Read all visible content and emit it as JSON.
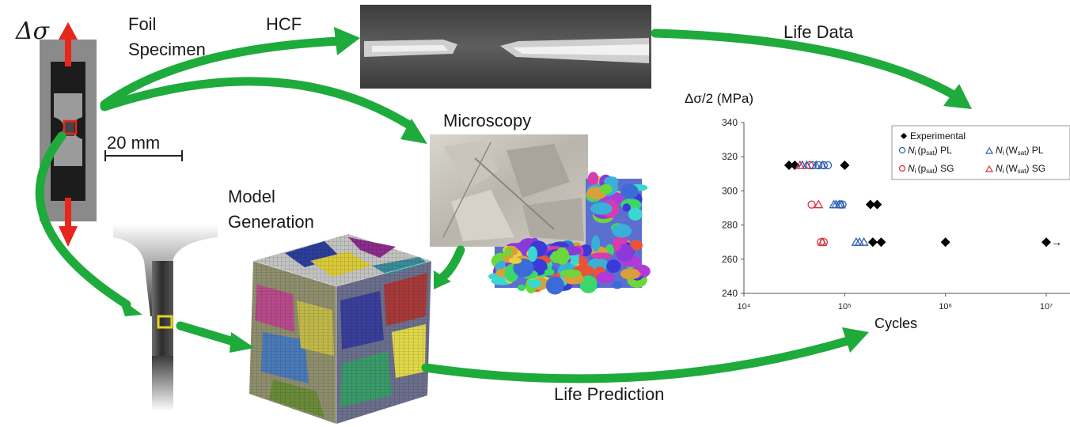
{
  "labels": {
    "delta_sigma": "Δσ",
    "foil_line1": "Foil",
    "foil_line2": "Specimen",
    "hcf": "HCF",
    "life_data": "Life Data",
    "microscopy": "Microscopy",
    "scale": "20 mm",
    "model_line1": "Model",
    "model_line2": "Generation",
    "life_prediction": "Life Prediction"
  },
  "colors": {
    "arrow": "#1faa3c",
    "load_arrow": "#e8261c",
    "exp": "#000000",
    "pl": "#2f5fb3",
    "sg": "#e0303a"
  },
  "chart_data": {
    "type": "scatter",
    "ylabel": "Δσ/2 (MPa)",
    "xlabel": "Cycles",
    "xscale": "log",
    "xlim": [
      10000,
      10000000
    ],
    "ylim": [
      240,
      340
    ],
    "xticks": [
      "10⁴",
      "10⁵",
      "10⁶",
      "10⁷"
    ],
    "yticks": [
      "240",
      "260",
      "280",
      "300",
      "320",
      "340"
    ],
    "legend_position": "top-right",
    "series": [
      {
        "name": "Experimental",
        "marker": "diamond",
        "color": "#000000",
        "x": [
          28000,
          32000,
          100000,
          180000,
          210000,
          190000,
          230000,
          1000000,
          10000000
        ],
        "y": [
          315,
          315,
          315,
          292,
          292,
          270,
          270,
          270,
          270
        ]
      },
      {
        "name": "N_i (p_sat) PL",
        "marker": "circle",
        "color": "#2f5fb3",
        "x": [
          48000,
          55000,
          62000,
          68000,
          90000,
          95000
        ],
        "y": [
          315,
          315,
          315,
          315,
          292,
          292
        ]
      },
      {
        "name": "N_i (W_sat) PL",
        "marker": "triangle",
        "color": "#2f5fb3",
        "x": [
          38000,
          42000,
          52000,
          60000,
          78000,
          82000,
          88000,
          92000,
          130000,
          140000,
          155000
        ],
        "y": [
          315,
          315,
          315,
          315,
          292,
          292,
          292,
          292,
          270,
          270,
          270
        ]
      },
      {
        "name": "N_i (p_sat) SG",
        "marker": "circle",
        "color": "#e0303a",
        "x": [
          45000,
          47000,
          58000,
          62000
        ],
        "y": [
          315,
          292,
          270,
          270
        ]
      },
      {
        "name": "N_i (W_sat) SG",
        "marker": "triangle",
        "color": "#e0303a",
        "x": [
          36000,
          55000,
          60000
        ],
        "y": [
          315,
          292,
          270
        ]
      }
    ],
    "runout_marker": "→",
    "legend": {
      "row1": "Experimental",
      "row2a": "N",
      "row2a_sub": "i",
      "row2a_paren": "(p",
      "row2a_sat": "sat",
      "row2a_tail": ") PL",
      "row2b": "N",
      "row2b_sub": "i",
      "row2b_paren": "(W",
      "row2b_sat": "sat",
      "row2b_tail": ") PL",
      "row3a_tail": ") SG",
      "row3b_tail": ") SG"
    }
  }
}
